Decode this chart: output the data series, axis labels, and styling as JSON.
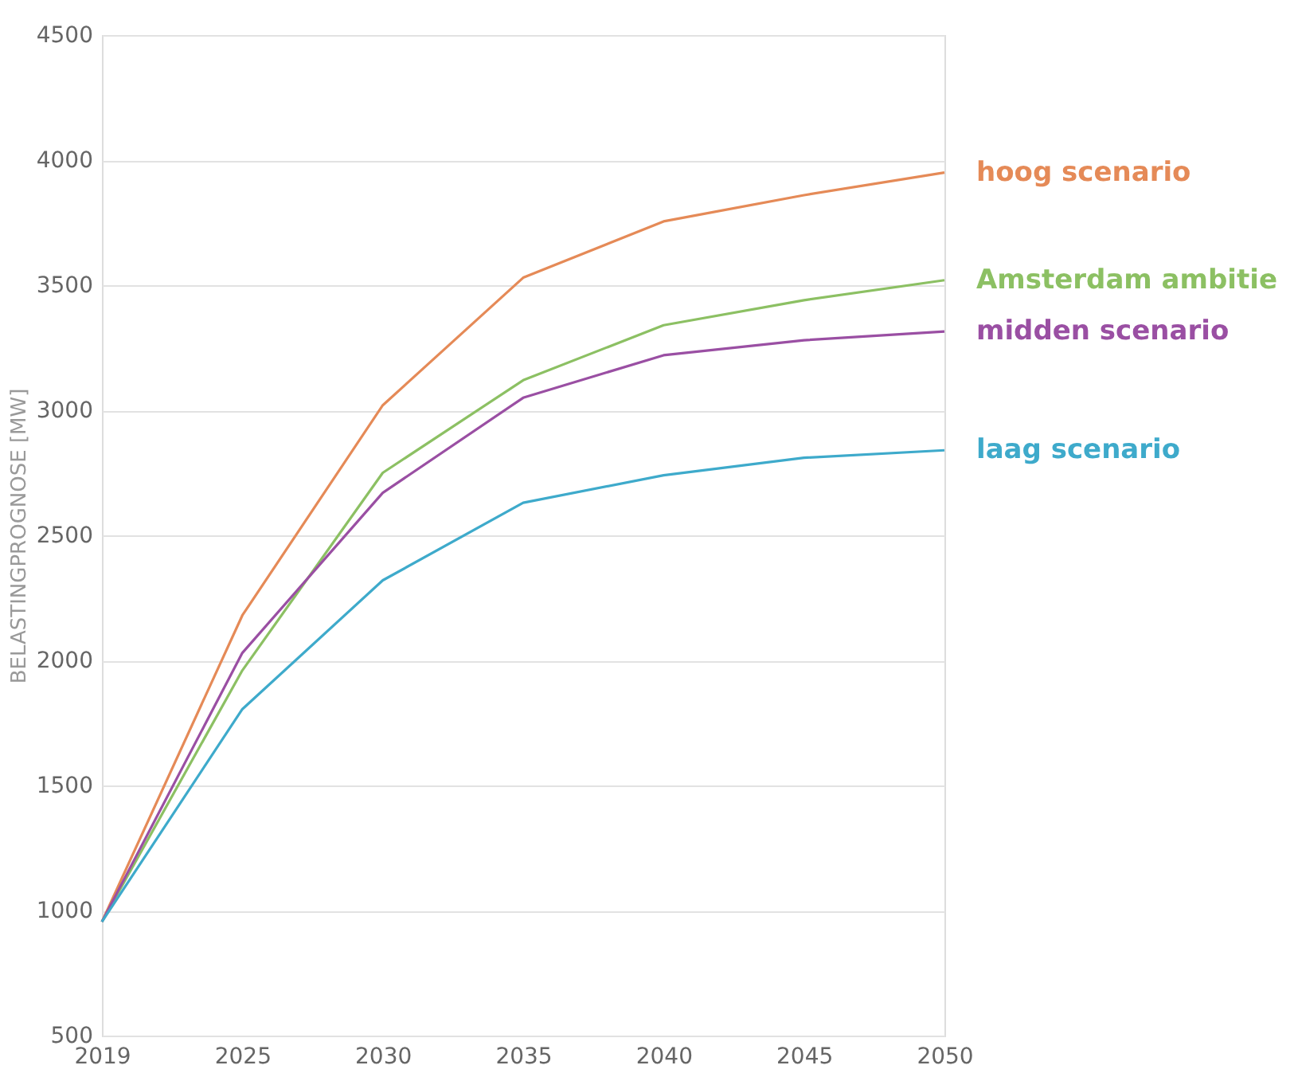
{
  "chart_data": {
    "type": "line",
    "ylabel": "BELASTINGPROGNOSE [MW]",
    "categories": [
      "2019",
      "2025",
      "2030",
      "2035",
      "2040",
      "2045",
      "2050"
    ],
    "series": [
      {
        "name": "hoog scenario",
        "color": "#e58a57",
        "values": [
          955,
          2180,
          3020,
          3530,
          3755,
          3860,
          3950
        ]
      },
      {
        "name": "Amsterdam ambitie",
        "color": "#8cc063",
        "values": [
          955,
          1960,
          2750,
          3120,
          3340,
          3440,
          3520
        ]
      },
      {
        "name": "midden scenario",
        "color": "#9a4fa3",
        "values": [
          955,
          2030,
          2670,
          3050,
          3220,
          3280,
          3315
        ]
      },
      {
        "name": "laag scenario",
        "color": "#3eaacb",
        "values": [
          955,
          1805,
          2320,
          2630,
          2740,
          2810,
          2840
        ]
      }
    ],
    "ylim": [
      500,
      4500
    ],
    "yticks": [
      500,
      1000,
      1500,
      2000,
      2500,
      3000,
      3500,
      4000,
      4500
    ],
    "grid": "y",
    "legend": "right",
    "marker": "none",
    "line_style": "solid"
  }
}
